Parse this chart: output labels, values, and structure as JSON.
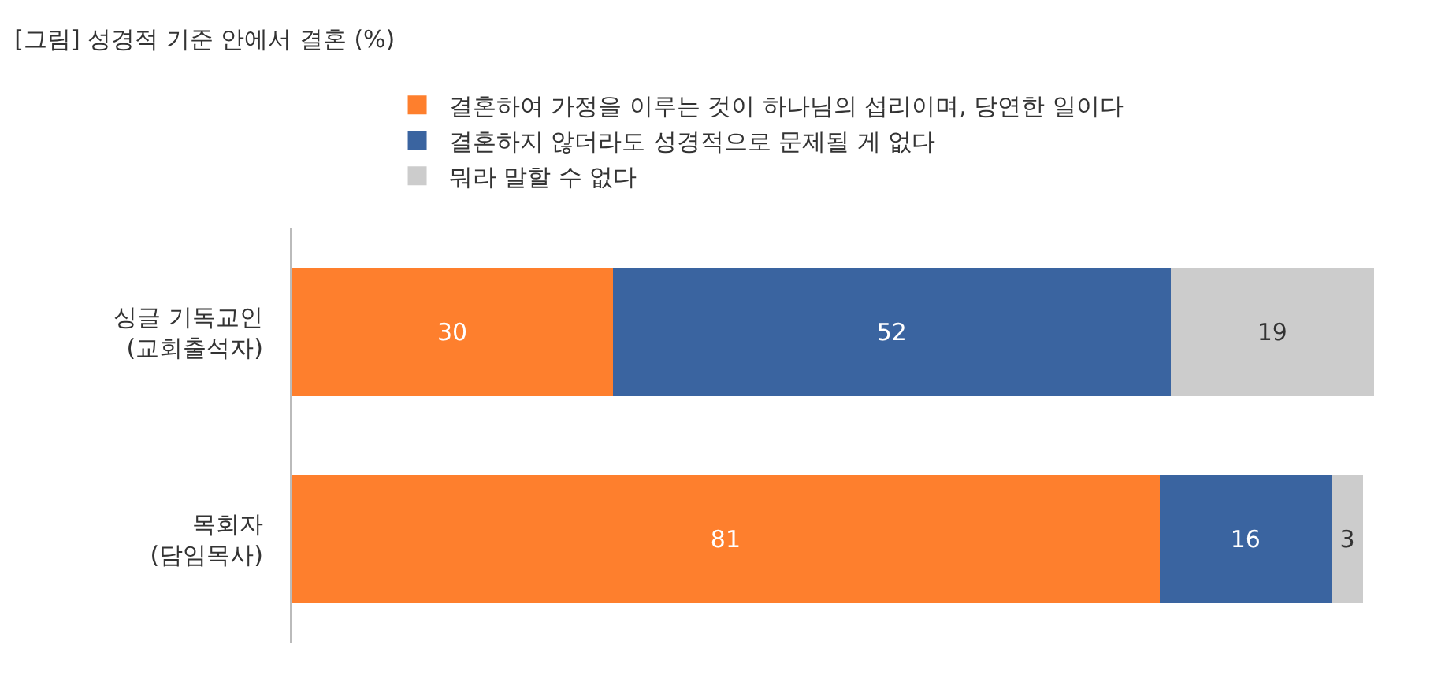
{
  "chart_data": {
    "type": "bar",
    "orientation": "horizontal",
    "stacked": true,
    "title": "[그림] 성경적 기준 안에서 결혼 (%)",
    "categories": [
      "싱글 기독교인\n(교회출석자)",
      "목회자\n(담임목사)"
    ],
    "series": [
      {
        "name": "결혼하여 가정을 이루는 것이 하나님의 섭리이며, 당연한 일이다",
        "color": "#fe7f2d",
        "values": [
          30,
          81
        ]
      },
      {
        "name": "결혼하지 않더라도 성경적으로 문제될 게 없다",
        "color": "#3a64a0",
        "values": [
          52,
          16
        ]
      },
      {
        "name": "뭐라 말할 수 없다",
        "color": "#cccccc",
        "values": [
          19,
          3
        ]
      }
    ],
    "data_labels": true,
    "legend": "top"
  }
}
